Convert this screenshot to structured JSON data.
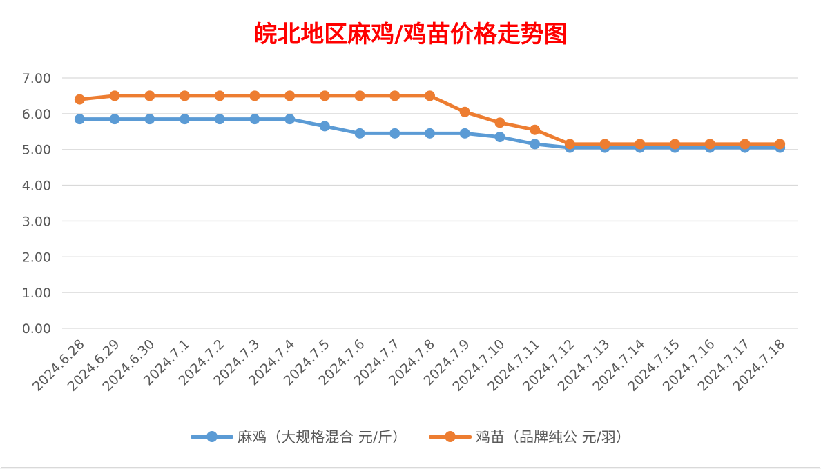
{
  "colors": {
    "title": "#ff0000",
    "series1": "#5b9bd5",
    "series2": "#ed7d31",
    "grid": "#d9d9d9",
    "axis_text": "#595959"
  },
  "chart_data": {
    "type": "line",
    "title": "皖北地区麻鸡/鸡苗价格走势图",
    "x": [
      "2024.6.28",
      "2024.6.29",
      "2024.6.30",
      "2024.7.1",
      "2024.7.2",
      "2024.7.3",
      "2024.7.4",
      "2024.7.5",
      "2024.7.6",
      "2024.7.7",
      "2024.7.8",
      "2024.7.9",
      "2024.7.10",
      "2024.7.11",
      "2024.7.12",
      "2024.7.13",
      "2024.7.14",
      "2024.7.15",
      "2024.7.16",
      "2024.7.17",
      "2024.7.18"
    ],
    "y_ticks": [
      "0.00",
      "1.00",
      "2.00",
      "3.00",
      "4.00",
      "5.00",
      "6.00",
      "7.00"
    ],
    "ylim": [
      0,
      7
    ],
    "grid": true,
    "legend_position": "bottom",
    "series": [
      {
        "name": "麻鸡（大规格混合 元/斤）",
        "values": [
          5.85,
          5.85,
          5.85,
          5.85,
          5.85,
          5.85,
          5.85,
          5.65,
          5.45,
          5.45,
          5.45,
          5.45,
          5.35,
          5.15,
          5.05,
          5.05,
          5.05,
          5.05,
          5.05,
          5.05,
          5.05
        ]
      },
      {
        "name": "鸡苗（品牌纯公 元/羽）",
        "values": [
          6.4,
          6.5,
          6.5,
          6.5,
          6.5,
          6.5,
          6.5,
          6.5,
          6.5,
          6.5,
          6.5,
          6.05,
          5.75,
          5.55,
          5.15,
          5.15,
          5.15,
          5.15,
          5.15,
          5.15,
          5.15
        ]
      }
    ]
  }
}
